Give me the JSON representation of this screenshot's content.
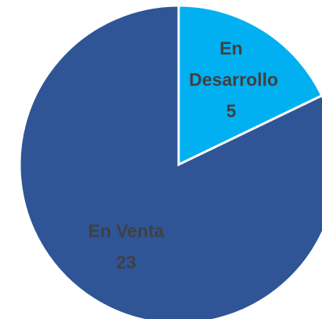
{
  "chart_data": {
    "type": "pie",
    "categories": [
      "En Desarrollo",
      "En Venta"
    ],
    "values": [
      5,
      23
    ],
    "colors": [
      "#00b0f0",
      "#2f5597"
    ]
  }
}
